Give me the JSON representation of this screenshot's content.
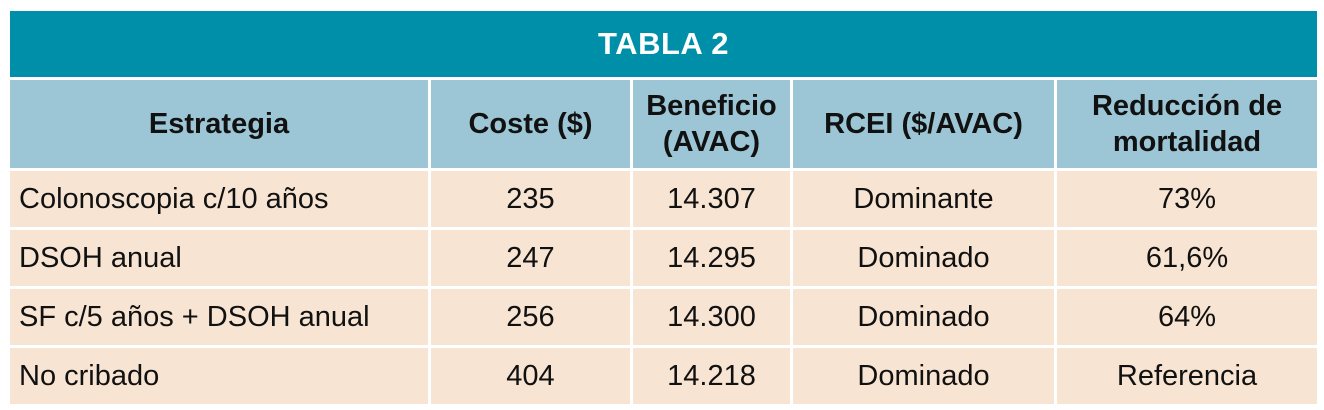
{
  "table": {
    "title": "TABLA 2",
    "columns": [
      "Estrategia",
      "Coste ($)",
      "Beneficio (AVAC)",
      "RCEI ($/AVAC)",
      "Reducción de mortalidad"
    ],
    "rows": [
      [
        "Colonoscopia c/10 años",
        "235",
        "14.307",
        "Dominante",
        "73%"
      ],
      [
        "DSOH anual",
        "247",
        "14.295",
        "Dominado",
        "61,6%"
      ],
      [
        "SF c/5 años + DSOH anual",
        "256",
        "14.300",
        "Dominado",
        "64%"
      ],
      [
        "No cribado",
        "404",
        "14.218",
        "Dominado",
        "Referencia"
      ]
    ],
    "colors": {
      "title_bg": "#008fa8",
      "header_bg": "#9cc6d6",
      "row_bg": "#f7e4d2"
    }
  }
}
